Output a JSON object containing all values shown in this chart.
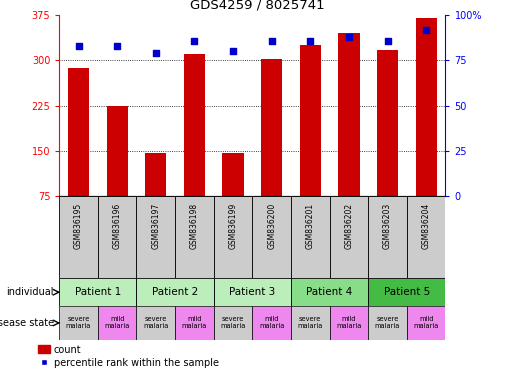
{
  "title": "GDS4259 / 8025741",
  "samples": [
    "GSM836195",
    "GSM836196",
    "GSM836197",
    "GSM836198",
    "GSM836199",
    "GSM836200",
    "GSM836201",
    "GSM836202",
    "GSM836203",
    "GSM836204"
  ],
  "counts": [
    288,
    224,
    146,
    310,
    146,
    302,
    325,
    345,
    317,
    370
  ],
  "percentile_ranks": [
    83,
    83,
    79,
    86,
    80,
    86,
    86,
    88,
    86,
    92
  ],
  "ylim_left": [
    75,
    375
  ],
  "ylim_right": [
    0,
    100
  ],
  "yticks_left": [
    75,
    150,
    225,
    300,
    375
  ],
  "yticks_right": [
    0,
    25,
    50,
    75,
    100
  ],
  "bar_color": "#cc0000",
  "scatter_color": "#0000cc",
  "patients": [
    {
      "label": "Patient 1",
      "cols": [
        0,
        1
      ],
      "color": "#bbeebb"
    },
    {
      "label": "Patient 2",
      "cols": [
        2,
        3
      ],
      "color": "#bbeebb"
    },
    {
      "label": "Patient 3",
      "cols": [
        4,
        5
      ],
      "color": "#bbeebb"
    },
    {
      "label": "Patient 4",
      "cols": [
        6,
        7
      ],
      "color": "#88dd88"
    },
    {
      "label": "Patient 5",
      "cols": [
        8,
        9
      ],
      "color": "#44bb44"
    }
  ],
  "disease_states": [
    {
      "label": "severe\nmalaria",
      "col": 0,
      "color": "#cccccc"
    },
    {
      "label": "mild\nmalaria",
      "col": 1,
      "color": "#ee88ee"
    },
    {
      "label": "severe\nmalaria",
      "col": 2,
      "color": "#cccccc"
    },
    {
      "label": "mild\nmalaria",
      "col": 3,
      "color": "#ee88ee"
    },
    {
      "label": "severe\nmalaria",
      "col": 4,
      "color": "#cccccc"
    },
    {
      "label": "mild\nmalaria",
      "col": 5,
      "color": "#ee88ee"
    },
    {
      "label": "severe\nmalaria",
      "col": 6,
      "color": "#cccccc"
    },
    {
      "label": "mild\nmalaria",
      "col": 7,
      "color": "#ee88ee"
    },
    {
      "label": "severe\nmalaria",
      "col": 8,
      "color": "#cccccc"
    },
    {
      "label": "mild\nmalaria",
      "col": 9,
      "color": "#ee88ee"
    }
  ],
  "legend_bar_label": "count",
  "legend_scatter_label": "percentile rank within the sample",
  "individual_label": "individual",
  "disease_state_label": "disease state",
  "bg_color": "#ffffff",
  "sample_bg_color": "#cccccc",
  "gridline_ticks": [
    150,
    225,
    300
  ],
  "bar_width": 0.55
}
